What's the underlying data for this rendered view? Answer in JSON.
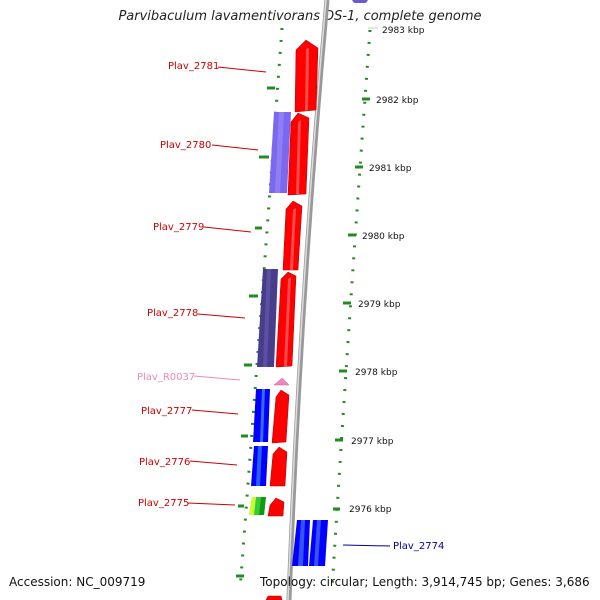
{
  "title": "Parvibaculum lavamentivorans DS-1, complete genome",
  "footer": {
    "accession": "Accession: NC_009719",
    "topology": "Topology: circular; Length: 3,914,745 bp; Genes: 3,686"
  },
  "colors": {
    "label_red": "#cc0000",
    "label_pink": "#ee88bb",
    "label_blue": "#000099",
    "backbone": "#999999",
    "tick": "#228b22"
  },
  "ruler_labels": [
    "2983 kbp",
    "2982 kbp",
    "2981 kbp",
    "2980 kbp",
    "2979 kbp",
    "2978 kbp",
    "2977 kbp",
    "2976 kbp"
  ],
  "gene_labels": [
    "Plav_2781",
    "Plav_2780",
    "Plav_2779",
    "Plav_2778",
    "Plav_R0037",
    "Plav_2777",
    "Plav_2776",
    "Plav_2775",
    "Plav_2774"
  ]
}
